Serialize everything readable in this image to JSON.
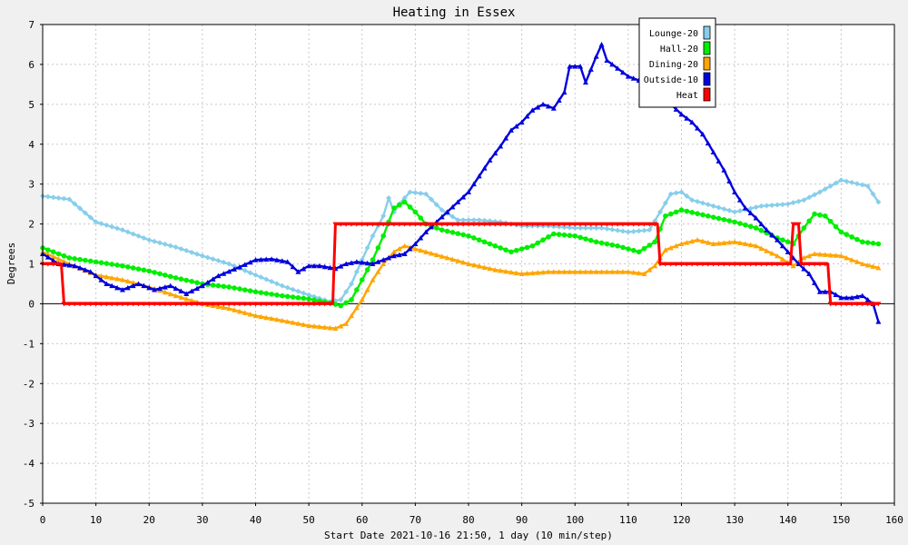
{
  "chart_data": {
    "type": "line",
    "title": "Heating in Essex",
    "xlabel": "Start Date 2021-10-16 21:50, 1 day (10 min/step)",
    "ylabel": "Degrees",
    "xlim": [
      0,
      160
    ],
    "ylim": [
      -5,
      7
    ],
    "xticks": [
      0,
      10,
      20,
      30,
      40,
      50,
      60,
      70,
      80,
      90,
      100,
      110,
      120,
      130,
      140,
      150,
      160
    ],
    "yticks": [
      -5,
      -4,
      -3,
      -2,
      -1,
      0,
      1,
      2,
      3,
      4,
      5,
      6,
      7
    ],
    "grid": true,
    "legend_position": "top-right",
    "series": [
      {
        "name": "Lounge-20",
        "color": "#87ceeb",
        "marker": "diamond",
        "points": [
          [
            0,
            2.7
          ],
          [
            5,
            2.62
          ],
          [
            10,
            2.05
          ],
          [
            15,
            1.85
          ],
          [
            20,
            1.6
          ],
          [
            25,
            1.42
          ],
          [
            30,
            1.2
          ],
          [
            35,
            1.0
          ],
          [
            40,
            0.72
          ],
          [
            45,
            0.45
          ],
          [
            50,
            0.22
          ],
          [
            54,
            0.05
          ],
          [
            56,
            0.1
          ],
          [
            58,
            0.5
          ],
          [
            60,
            1.1
          ],
          [
            62,
            1.7
          ],
          [
            64,
            2.2
          ],
          [
            65,
            2.65
          ],
          [
            66,
            2.3
          ],
          [
            67,
            2.5
          ],
          [
            69,
            2.8
          ],
          [
            72,
            2.75
          ],
          [
            75,
            2.35
          ],
          [
            78,
            2.1
          ],
          [
            82,
            2.1
          ],
          [
            86,
            2.05
          ],
          [
            90,
            1.95
          ],
          [
            95,
            1.95
          ],
          [
            100,
            1.9
          ],
          [
            105,
            1.9
          ],
          [
            110,
            1.8
          ],
          [
            114,
            1.85
          ],
          [
            116,
            2.3
          ],
          [
            118,
            2.75
          ],
          [
            120,
            2.8
          ],
          [
            122,
            2.6
          ],
          [
            126,
            2.45
          ],
          [
            130,
            2.3
          ],
          [
            135,
            2.45
          ],
          [
            140,
            2.5
          ],
          [
            143,
            2.6
          ],
          [
            146,
            2.8
          ],
          [
            150,
            3.1
          ],
          [
            155,
            2.95
          ],
          [
            157,
            2.55
          ]
        ]
      },
      {
        "name": "Hall-20",
        "color": "#00ee00",
        "marker": "circle",
        "points": [
          [
            0,
            1.4
          ],
          [
            5,
            1.15
          ],
          [
            10,
            1.05
          ],
          [
            15,
            0.95
          ],
          [
            20,
            0.82
          ],
          [
            25,
            0.65
          ],
          [
            30,
            0.5
          ],
          [
            35,
            0.42
          ],
          [
            40,
            0.3
          ],
          [
            45,
            0.2
          ],
          [
            50,
            0.12
          ],
          [
            54,
            0.02
          ],
          [
            56,
            -0.05
          ],
          [
            58,
            0.1
          ],
          [
            60,
            0.6
          ],
          [
            62,
            1.1
          ],
          [
            64,
            1.7
          ],
          [
            66,
            2.4
          ],
          [
            68,
            2.55
          ],
          [
            70,
            2.3
          ],
          [
            72,
            2.0
          ],
          [
            75,
            1.85
          ],
          [
            80,
            1.7
          ],
          [
            84,
            1.5
          ],
          [
            88,
            1.3
          ],
          [
            92,
            1.45
          ],
          [
            96,
            1.75
          ],
          [
            100,
            1.7
          ],
          [
            104,
            1.55
          ],
          [
            108,
            1.45
          ],
          [
            112,
            1.3
          ],
          [
            115,
            1.55
          ],
          [
            117,
            2.2
          ],
          [
            120,
            2.35
          ],
          [
            125,
            2.2
          ],
          [
            130,
            2.05
          ],
          [
            134,
            1.9
          ],
          [
            138,
            1.65
          ],
          [
            141,
            1.5
          ],
          [
            143,
            1.9
          ],
          [
            145,
            2.25
          ],
          [
            147,
            2.2
          ],
          [
            150,
            1.8
          ],
          [
            154,
            1.55
          ],
          [
            157,
            1.5
          ]
        ]
      },
      {
        "name": "Dining-20",
        "color": "#ffa500",
        "marker": "triangle",
        "points": [
          [
            0,
            1.3
          ],
          [
            5,
            1.0
          ],
          [
            10,
            0.72
          ],
          [
            15,
            0.6
          ],
          [
            20,
            0.42
          ],
          [
            25,
            0.2
          ],
          [
            30,
            0.0
          ],
          [
            35,
            -0.12
          ],
          [
            40,
            -0.3
          ],
          [
            45,
            -0.42
          ],
          [
            50,
            -0.55
          ],
          [
            55,
            -0.62
          ],
          [
            57,
            -0.5
          ],
          [
            60,
            0.1
          ],
          [
            62,
            0.6
          ],
          [
            64,
            1.0
          ],
          [
            66,
            1.3
          ],
          [
            68,
            1.45
          ],
          [
            72,
            1.3
          ],
          [
            76,
            1.15
          ],
          [
            80,
            1.0
          ],
          [
            85,
            0.85
          ],
          [
            90,
            0.75
          ],
          [
            95,
            0.8
          ],
          [
            100,
            0.8
          ],
          [
            105,
            0.8
          ],
          [
            110,
            0.8
          ],
          [
            113,
            0.75
          ],
          [
            115,
            0.95
          ],
          [
            117,
            1.35
          ],
          [
            120,
            1.5
          ],
          [
            123,
            1.6
          ],
          [
            126,
            1.5
          ],
          [
            130,
            1.55
          ],
          [
            134,
            1.45
          ],
          [
            138,
            1.2
          ],
          [
            141,
            0.95
          ],
          [
            143,
            1.15
          ],
          [
            145,
            1.25
          ],
          [
            150,
            1.2
          ],
          [
            154,
            1.0
          ],
          [
            157,
            0.9
          ]
        ]
      },
      {
        "name": "Outside-10",
        "color": "#0000dd",
        "marker": "triangle",
        "points": [
          [
            0,
            1.25
          ],
          [
            3,
            1.0
          ],
          [
            6,
            0.95
          ],
          [
            9,
            0.8
          ],
          [
            12,
            0.5
          ],
          [
            15,
            0.35
          ],
          [
            18,
            0.5
          ],
          [
            21,
            0.35
          ],
          [
            24,
            0.45
          ],
          [
            27,
            0.25
          ],
          [
            30,
            0.45
          ],
          [
            33,
            0.7
          ],
          [
            37,
            0.92
          ],
          [
            40,
            1.1
          ],
          [
            43,
            1.12
          ],
          [
            46,
            1.05
          ],
          [
            48,
            0.8
          ],
          [
            50,
            0.95
          ],
          [
            52,
            0.95
          ],
          [
            55,
            0.88
          ],
          [
            57,
            1.0
          ],
          [
            59,
            1.05
          ],
          [
            62,
            1.0
          ],
          [
            64,
            1.1
          ],
          [
            66,
            1.2
          ],
          [
            68,
            1.25
          ],
          [
            70,
            1.5
          ],
          [
            72,
            1.8
          ],
          [
            74,
            2.05
          ],
          [
            76,
            2.3
          ],
          [
            78,
            2.55
          ],
          [
            80,
            2.8
          ],
          [
            82,
            3.2
          ],
          [
            84,
            3.6
          ],
          [
            86,
            3.95
          ],
          [
            88,
            4.35
          ],
          [
            90,
            4.55
          ],
          [
            92,
            4.85
          ],
          [
            94,
            5.0
          ],
          [
            96,
            4.9
          ],
          [
            98,
            5.3
          ],
          [
            99,
            5.95
          ],
          [
            101,
            5.95
          ],
          [
            102,
            5.55
          ],
          [
            104,
            6.2
          ],
          [
            105,
            6.5
          ],
          [
            106,
            6.1
          ],
          [
            108,
            5.9
          ],
          [
            110,
            5.7
          ],
          [
            112,
            5.6
          ],
          [
            115,
            5.5
          ],
          [
            118,
            5.0
          ],
          [
            120,
            4.75
          ],
          [
            122,
            4.55
          ],
          [
            124,
            4.25
          ],
          [
            126,
            3.8
          ],
          [
            128,
            3.35
          ],
          [
            130,
            2.8
          ],
          [
            132,
            2.4
          ],
          [
            134,
            2.15
          ],
          [
            136,
            1.85
          ],
          [
            138,
            1.6
          ],
          [
            140,
            1.3
          ],
          [
            142,
            1.0
          ],
          [
            144,
            0.75
          ],
          [
            146,
            0.3
          ],
          [
            148,
            0.3
          ],
          [
            150,
            0.15
          ],
          [
            152,
            0.15
          ],
          [
            154,
            0.2
          ],
          [
            156,
            0.0
          ],
          [
            157,
            -0.45
          ]
        ]
      },
      {
        "name": "Heat",
        "color": "#ff0000",
        "marker": "triangle-down",
        "points": [
          [
            0,
            1.0
          ],
          [
            3.5,
            1.0
          ],
          [
            4,
            0.0
          ],
          [
            54.5,
            0.0
          ],
          [
            55,
            2.0
          ],
          [
            115.5,
            2.0
          ],
          [
            116,
            1.0
          ],
          [
            140.5,
            1.0
          ],
          [
            141,
            2.0
          ],
          [
            142,
            2.0
          ],
          [
            142.5,
            1.0
          ],
          [
            147.5,
            1.0
          ],
          [
            148,
            0.0
          ],
          [
            157,
            0.0
          ]
        ]
      }
    ]
  }
}
